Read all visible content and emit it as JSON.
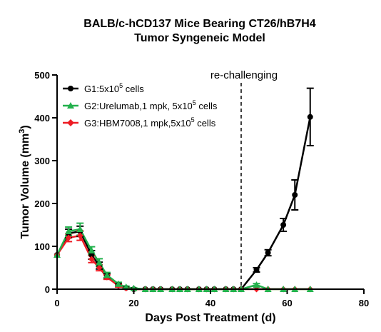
{
  "chart_data": {
    "type": "line",
    "title_line1": "BALB/c-hCD137 Mice Bearing CT26/hB7H4",
    "title_line2": "Tumor Syngeneic Model",
    "xlabel": "Days Post Treatment (d)",
    "ylabel_main": "Tumor Volume (mm",
    "ylabel_sup": "3",
    "ylabel_end": ")",
    "xlim": [
      0,
      80
    ],
    "ylim": [
      0,
      500
    ],
    "xticks": [
      "0",
      "20",
      "40",
      "60",
      "80"
    ],
    "yticks": [
      "0",
      "100",
      "200",
      "300",
      "400",
      "500"
    ],
    "annotation": {
      "text": "re-challenging",
      "x": 48
    },
    "series": [
      {
        "legend_base": "G1:5x10",
        "legend_sup": "5",
        "legend_end": " cells",
        "color": "#000000",
        "marker": "circle",
        "x": [
          0,
          3,
          6,
          9,
          11,
          13,
          16,
          18,
          20,
          23,
          25,
          27,
          30,
          32,
          34,
          37,
          39,
          41,
          44,
          46,
          48,
          52,
          55,
          59,
          62,
          66
        ],
        "y": [
          80,
          130,
          135,
          80,
          55,
          30,
          10,
          3,
          0,
          0,
          0,
          0,
          0,
          0,
          0,
          0,
          0,
          0,
          0,
          0,
          0,
          45,
          85,
          150,
          220,
          402
        ],
        "err": [
          0,
          10,
          12,
          10,
          8,
          6,
          3,
          1,
          0,
          0,
          0,
          0,
          0,
          0,
          0,
          0,
          0,
          0,
          0,
          0,
          0,
          5,
          7,
          15,
          35,
          67
        ]
      },
      {
        "legend_base": "G2:Urelumab,1 mpk, 5x10",
        "legend_sup": "5",
        "legend_end": " cells",
        "color": "#22b14c",
        "marker": "triangle",
        "x": [
          0,
          3,
          6,
          9,
          11,
          13,
          16,
          18,
          20,
          23,
          25,
          27,
          30,
          32,
          34,
          37,
          39,
          41,
          44,
          46,
          48,
          52,
          55,
          59,
          62,
          66
        ],
        "y": [
          80,
          135,
          140,
          90,
          62,
          33,
          12,
          5,
          2,
          0,
          0,
          0,
          0,
          0,
          0,
          0,
          0,
          0,
          0,
          0,
          0,
          10,
          0,
          0,
          0,
          0
        ],
        "err": [
          0,
          10,
          14,
          9,
          9,
          6,
          4,
          2,
          1,
          0,
          0,
          0,
          0,
          0,
          0,
          0,
          0,
          0,
          0,
          0,
          0,
          3,
          0,
          0,
          0,
          0
        ]
      },
      {
        "legend_base": "G3:HBM7008,1 mpk,5x10",
        "legend_sup": "5",
        "legend_end": " cells",
        "color": "#ed1c24",
        "marker": "diamond",
        "x": [
          0,
          3,
          6,
          9,
          11,
          13,
          16,
          18,
          20,
          23,
          25,
          27,
          30,
          32,
          34,
          37,
          39,
          41,
          44,
          46,
          48,
          52,
          55,
          59,
          62,
          66
        ],
        "y": [
          80,
          120,
          125,
          70,
          50,
          28,
          8,
          2,
          0,
          0,
          0,
          0,
          0,
          0,
          0,
          0,
          0,
          0,
          0,
          0,
          0,
          0,
          0,
          0,
          0,
          0
        ],
        "err": [
          0,
          9,
          11,
          8,
          7,
          5,
          3,
          1,
          0,
          0,
          0,
          0,
          0,
          0,
          0,
          0,
          0,
          0,
          0,
          0,
          0,
          0,
          0,
          0,
          0,
          0
        ]
      }
    ]
  }
}
